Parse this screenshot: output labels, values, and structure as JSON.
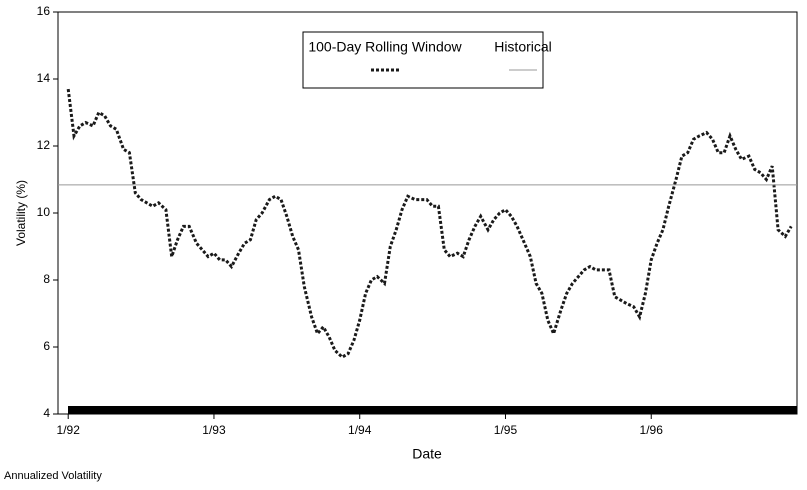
{
  "chart_data": {
    "type": "line",
    "y_label": "Volatility (%)",
    "x_label": "Date",
    "footnote": "Annualized Volatility",
    "xlim": [
      1991.93,
      1997.0
    ],
    "ylim": [
      4,
      16
    ],
    "xticks": [
      {
        "value": 1992,
        "label": "1/92"
      },
      {
        "value": 1993,
        "label": "1/93"
      },
      {
        "value": 1994,
        "label": "1/94"
      },
      {
        "value": 1995,
        "label": "1/95"
      },
      {
        "value": 1996,
        "label": "1/96"
      }
    ],
    "yticks": [
      4,
      6,
      8,
      10,
      12,
      14,
      16
    ],
    "legend": "top-center",
    "series": [
      {
        "name": "100-Day Rolling Window",
        "color": "#1a1a1a",
        "dashed": true,
        "x": [
          1992.0,
          1992.04,
          1992.08,
          1992.12,
          1992.17,
          1992.21,
          1992.25,
          1992.29,
          1992.33,
          1992.38,
          1992.42,
          1992.46,
          1992.5,
          1992.54,
          1992.58,
          1992.62,
          1992.67,
          1992.71,
          1992.75,
          1992.79,
          1992.83,
          1992.88,
          1992.92,
          1992.96,
          1993.0,
          1993.04,
          1993.08,
          1993.12,
          1993.17,
          1993.21,
          1993.25,
          1993.29,
          1993.33,
          1993.38,
          1993.42,
          1993.46,
          1993.5,
          1993.54,
          1993.58,
          1993.62,
          1993.67,
          1993.71,
          1993.75,
          1993.79,
          1993.83,
          1993.88,
          1993.92,
          1993.96,
          1994.0,
          1994.04,
          1994.08,
          1994.12,
          1994.17,
          1994.21,
          1994.25,
          1994.29,
          1994.33,
          1994.38,
          1994.42,
          1994.46,
          1994.5,
          1994.54,
          1994.58,
          1994.62,
          1994.67,
          1994.71,
          1994.75,
          1994.79,
          1994.83,
          1994.88,
          1994.92,
          1994.96,
          1995.0,
          1995.04,
          1995.08,
          1995.12,
          1995.17,
          1995.21,
          1995.25,
          1995.29,
          1995.33,
          1995.38,
          1995.42,
          1995.46,
          1995.5,
          1995.54,
          1995.58,
          1995.62,
          1995.67,
          1995.71,
          1995.75,
          1995.79,
          1995.83,
          1995.88,
          1995.92,
          1995.96,
          1996.0,
          1996.04,
          1996.08,
          1996.12,
          1996.17,
          1996.21,
          1996.25,
          1996.29,
          1996.33,
          1996.38,
          1996.42,
          1996.46,
          1996.5,
          1996.54,
          1996.58,
          1996.62,
          1996.67,
          1996.71,
          1996.75,
          1996.79,
          1996.83,
          1996.87,
          1996.92,
          1996.96
        ],
        "values": [
          13.7,
          12.3,
          12.6,
          12.7,
          12.6,
          13.0,
          12.9,
          12.6,
          12.5,
          11.9,
          11.8,
          10.6,
          10.4,
          10.3,
          10.2,
          10.3,
          10.1,
          8.7,
          9.2,
          9.6,
          9.6,
          9.1,
          8.9,
          8.7,
          8.8,
          8.6,
          8.6,
          8.4,
          8.8,
          9.1,
          9.2,
          9.8,
          10.0,
          10.4,
          10.5,
          10.4,
          9.9,
          9.3,
          8.9,
          7.8,
          6.9,
          6.4,
          6.6,
          6.3,
          5.9,
          5.7,
          5.8,
          6.2,
          6.8,
          7.6,
          8.0,
          8.1,
          7.9,
          9.0,
          9.5,
          10.1,
          10.5,
          10.4,
          10.4,
          10.4,
          10.2,
          10.2,
          8.9,
          8.7,
          8.8,
          8.7,
          9.2,
          9.6,
          9.9,
          9.5,
          9.8,
          10.0,
          10.1,
          9.9,
          9.6,
          9.2,
          8.7,
          7.9,
          7.6,
          6.8,
          6.4,
          7.1,
          7.6,
          7.9,
          8.1,
          8.3,
          8.4,
          8.3,
          8.3,
          8.3,
          7.5,
          7.4,
          7.3,
          7.2,
          6.9,
          7.6,
          8.6,
          9.1,
          9.5,
          10.2,
          11.0,
          11.7,
          11.8,
          12.2,
          12.3,
          12.4,
          12.2,
          11.8,
          11.8,
          12.3,
          11.9,
          11.6,
          11.7,
          11.3,
          11.2,
          11.0,
          11.4,
          9.5,
          9.3,
          9.6
        ]
      },
      {
        "name": "Historical",
        "color": "#999999",
        "dashed": false,
        "x": [
          1991.93,
          1997.0
        ],
        "values": [
          10.84,
          10.84
        ]
      }
    ]
  }
}
